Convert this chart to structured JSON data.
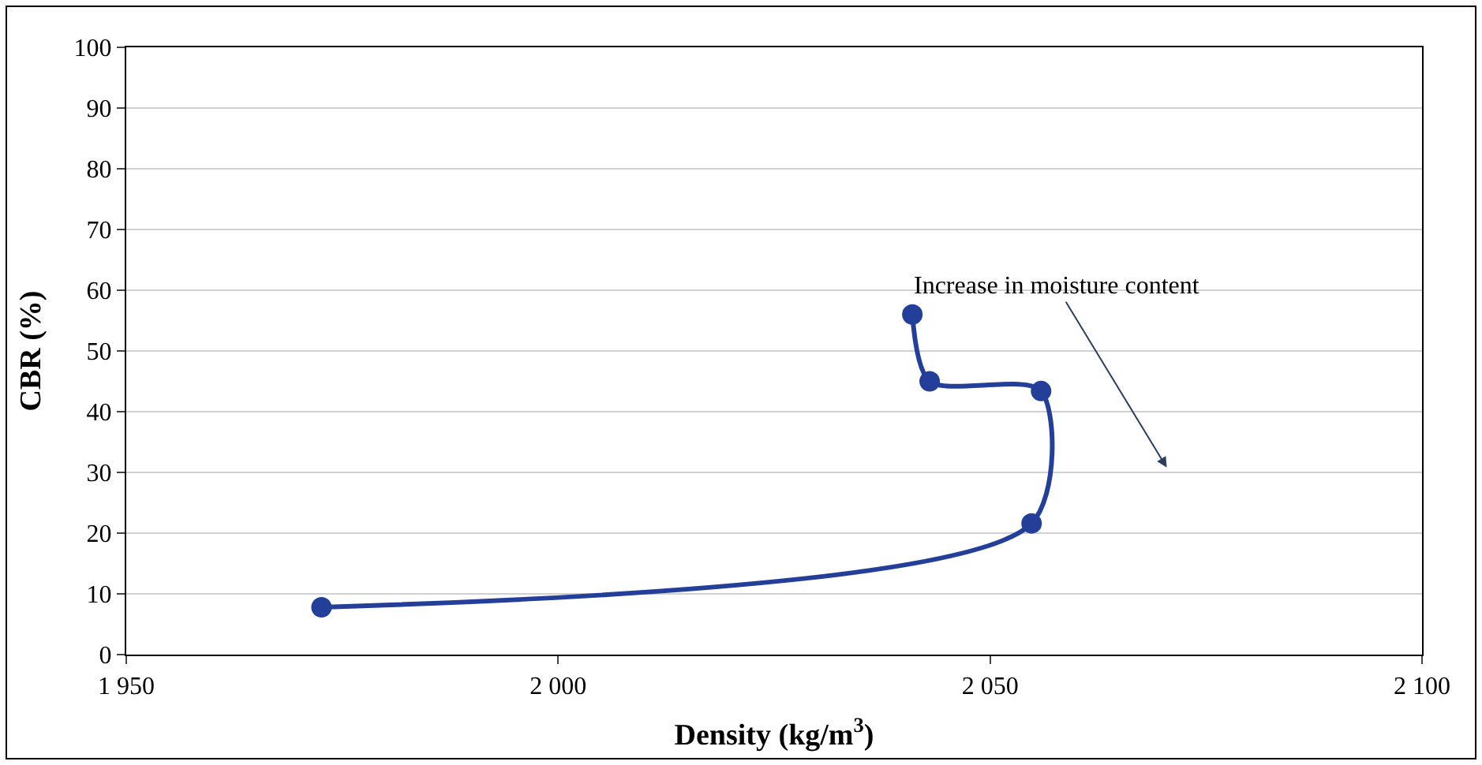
{
  "chart_data": {
    "type": "line",
    "xlabel": "Density (kg/m$^{3}$)",
    "ylabel": "CBR (%)",
    "series": [
      {
        "color": "#243f9a",
        "x": [
          2041,
          2043,
          2055.9,
          2054.8,
          1972.6
        ],
        "values": [
          56,
          45,
          43.4,
          21.6,
          7.8
        ]
      }
    ],
    "xlim": [
      1950,
      2100
    ],
    "xticks": [
      {
        "value": 1950,
        "label": "1 950"
      },
      {
        "value": 2000,
        "label": "2 000"
      },
      {
        "value": 2050,
        "label": "2 050"
      },
      {
        "value": 2100,
        "label": "2 100"
      }
    ],
    "ylim": [
      0,
      100
    ],
    "yticks": [
      0,
      10,
      20,
      30,
      40,
      50,
      60,
      70,
      80,
      90,
      100
    ],
    "grid": "y",
    "marker": "circle",
    "line_style": "solid",
    "annotations": [
      "Increase in moisture content"
    ]
  }
}
